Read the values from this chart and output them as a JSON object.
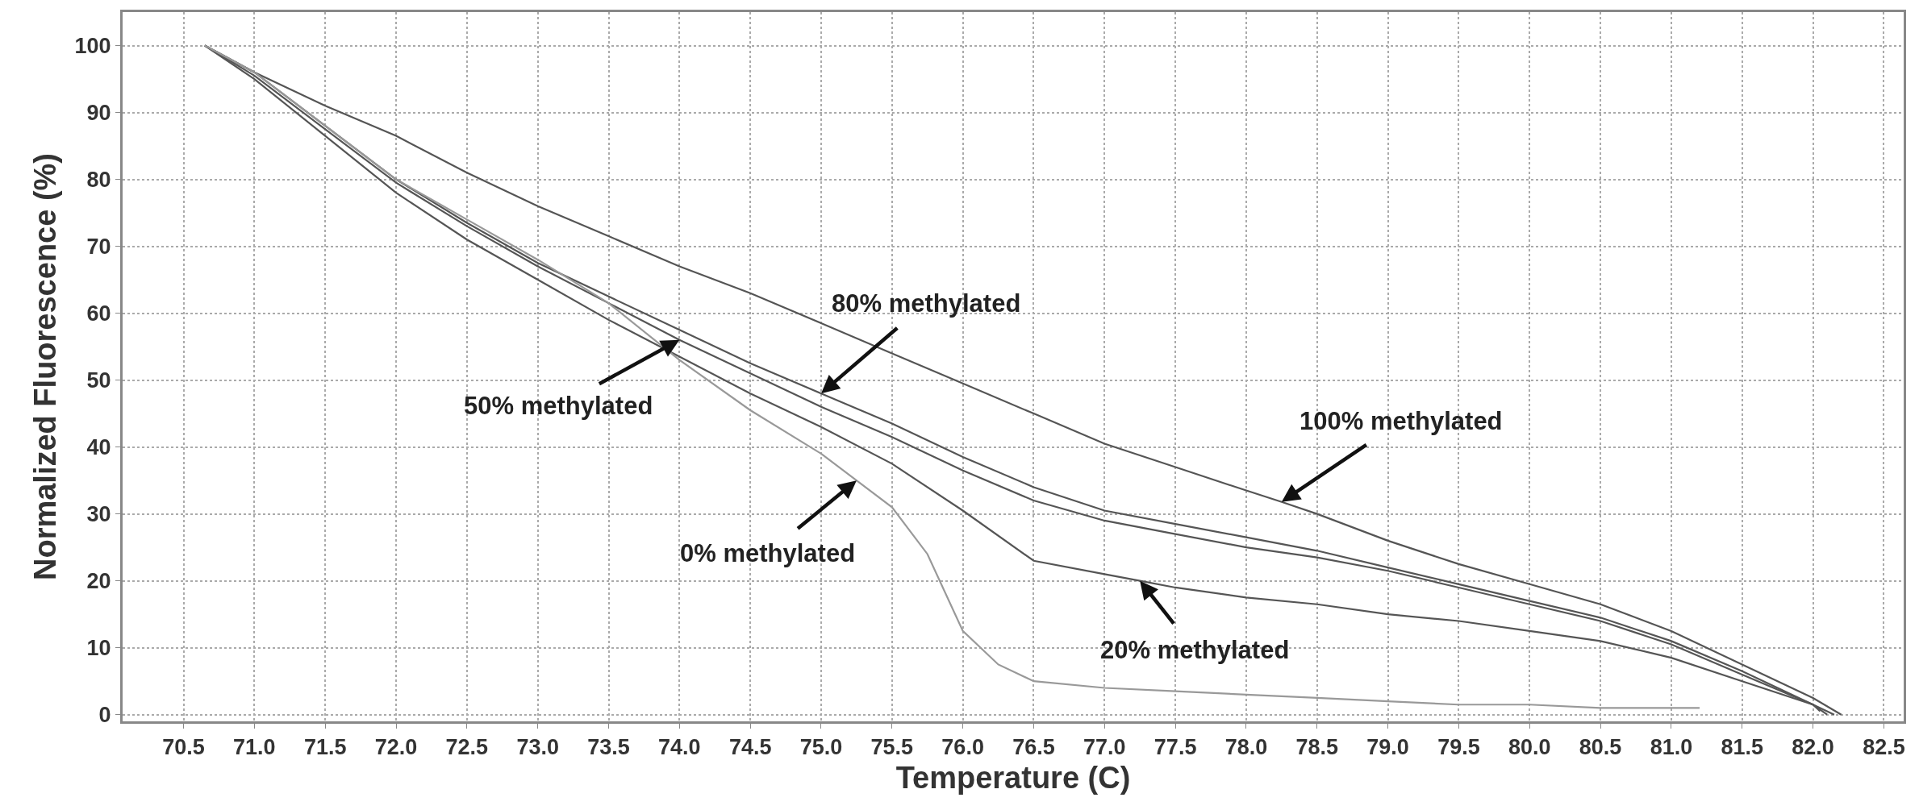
{
  "chart_data": {
    "type": "line",
    "xlabel": "Temperature (C)",
    "ylabel": "Normalized Fluorescence (%)",
    "xlim": [
      70.07,
      82.64
    ],
    "ylim": [
      -1,
      105
    ],
    "xticks": [
      {
        "value": 70.5,
        "label": "70.5"
      },
      {
        "value": 71,
        "label": "71.0"
      },
      {
        "value": 71.5,
        "label": "71.5"
      },
      {
        "value": 72,
        "label": "72.0"
      },
      {
        "value": 72.5,
        "label": "72.5"
      },
      {
        "value": 73,
        "label": "73.0"
      },
      {
        "value": 73.5,
        "label": "73.5"
      },
      {
        "value": 74,
        "label": "74.0"
      },
      {
        "value": 74.5,
        "label": "74.5"
      },
      {
        "value": 75,
        "label": "75.0"
      },
      {
        "value": 75.5,
        "label": "75.5"
      },
      {
        "value": 76,
        "label": "76.0"
      },
      {
        "value": 76.5,
        "label": "76.5"
      },
      {
        "value": 77,
        "label": "77.0"
      },
      {
        "value": 77.5,
        "label": "77.5"
      },
      {
        "value": 78,
        "label": "78.0"
      },
      {
        "value": 78.5,
        "label": "78.5"
      },
      {
        "value": 79,
        "label": "79.0"
      },
      {
        "value": 79.5,
        "label": "79.5"
      },
      {
        "value": 80,
        "label": "80.0"
      },
      {
        "value": 80.5,
        "label": "80.5"
      },
      {
        "value": 81,
        "label": "81.0"
      },
      {
        "value": 81.5,
        "label": "81.5"
      },
      {
        "value": 82,
        "label": "82.0"
      },
      {
        "value": 82.5,
        "label": "82.5"
      }
    ],
    "yticks": [
      0,
      10,
      20,
      30,
      40,
      50,
      60,
      70,
      80,
      90,
      100
    ],
    "grid": true,
    "line_style": "solid",
    "marker": "none",
    "series": [
      {
        "color": "#555555",
        "x": [
          70.65,
          71.0,
          71.5,
          72.0,
          72.5,
          73.0,
          73.5,
          74.0,
          74.5,
          75.0,
          75.5,
          76.0,
          76.5,
          77.0,
          77.5,
          78.0,
          78.25,
          78.5,
          79.0,
          79.5,
          80.0,
          80.5,
          81.0,
          81.5,
          82.0,
          82.2
        ],
        "values": [
          100,
          96,
          91,
          86.5,
          81,
          76,
          71.5,
          67,
          63,
          58.5,
          54,
          49.5,
          45,
          40.5,
          37,
          33.5,
          31.8,
          30,
          26,
          22.5,
          19.5,
          16.5,
          12.5,
          7.5,
          2.5,
          0
        ]
      },
      {
        "color": "#555555",
        "x": [
          70.65,
          71.0,
          71.5,
          72.0,
          72.5,
          73.0,
          73.5,
          74.0,
          74.5,
          75.0,
          75.5,
          76.0,
          76.5,
          77.0,
          77.5,
          78.0,
          78.5,
          79.0,
          79.5,
          80.0,
          80.5,
          81.0,
          81.5,
          82.0,
          82.15
        ],
        "values": [
          100,
          96,
          88,
          80,
          73.5,
          67.5,
          62.5,
          57.5,
          52.5,
          48,
          43.5,
          38.5,
          34,
          30.5,
          28.5,
          26.5,
          24.5,
          22,
          19.5,
          17,
          14.5,
          11,
          6.5,
          1.5,
          0
        ]
      },
      {
        "color": "#555555",
        "x": [
          70.65,
          71.0,
          71.5,
          72.0,
          72.5,
          73.0,
          73.5,
          74.0,
          74.5,
          75.0,
          75.5,
          76.0,
          76.5,
          77.0,
          77.5,
          78.0,
          78.5,
          79.0,
          79.5,
          80.0,
          80.5,
          81.0,
          81.5,
          82.0,
          82.1
        ],
        "values": [
          100,
          95.5,
          87.5,
          79.5,
          73,
          67,
          61.5,
          56,
          51,
          46,
          41.5,
          36.5,
          32,
          29,
          27,
          25,
          23.5,
          21.5,
          19,
          16.5,
          14,
          10.5,
          6,
          1.5,
          0
        ]
      },
      {
        "color": "#555555",
        "x": [
          70.65,
          71.0,
          71.5,
          72.0,
          72.5,
          73.0,
          73.5,
          74.0,
          74.5,
          75.0,
          75.5,
          76.0,
          76.5,
          77.0,
          77.25,
          77.5,
          78.0,
          78.5,
          79.0,
          79.5,
          80.0,
          80.5,
          81.0,
          81.5,
          82.0,
          82.05
        ],
        "values": [
          100,
          95,
          86.5,
          78,
          71,
          65,
          59,
          53.5,
          48,
          43,
          37.5,
          30.5,
          23,
          21,
          20,
          19,
          17.5,
          16.5,
          15,
          14,
          12.5,
          11,
          8.5,
          5,
          1.5,
          0.5
        ]
      },
      {
        "color": "#999999",
        "x": [
          70.65,
          71.0,
          71.5,
          72.0,
          72.5,
          73.0,
          73.5,
          74.0,
          74.5,
          75.0,
          75.25,
          75.5,
          75.75,
          76.0,
          76.25,
          76.5,
          77.0,
          77.5,
          78.0,
          78.5,
          79.0,
          79.5,
          80.0,
          80.5,
          81.2
        ],
        "values": [
          100,
          96,
          88,
          80,
          74,
          68,
          61.5,
          53,
          45.5,
          39,
          35,
          31,
          24,
          12.5,
          7.5,
          5,
          4,
          3.5,
          3,
          2.5,
          2,
          1.5,
          1.5,
          1,
          1
        ]
      }
    ],
    "annotations": [
      {
        "text": "80% methylated",
        "x": 75.0,
        "y": 48
      },
      {
        "text": "50% methylated",
        "x": 74.0,
        "y": 56
      },
      {
        "text": "0% methylated",
        "x": 75.25,
        "y": 35
      },
      {
        "text": "100% methylated",
        "x": 78.25,
        "y": 31.8
      },
      {
        "text": "20% methylated",
        "x": 77.25,
        "y": 20
      }
    ]
  }
}
